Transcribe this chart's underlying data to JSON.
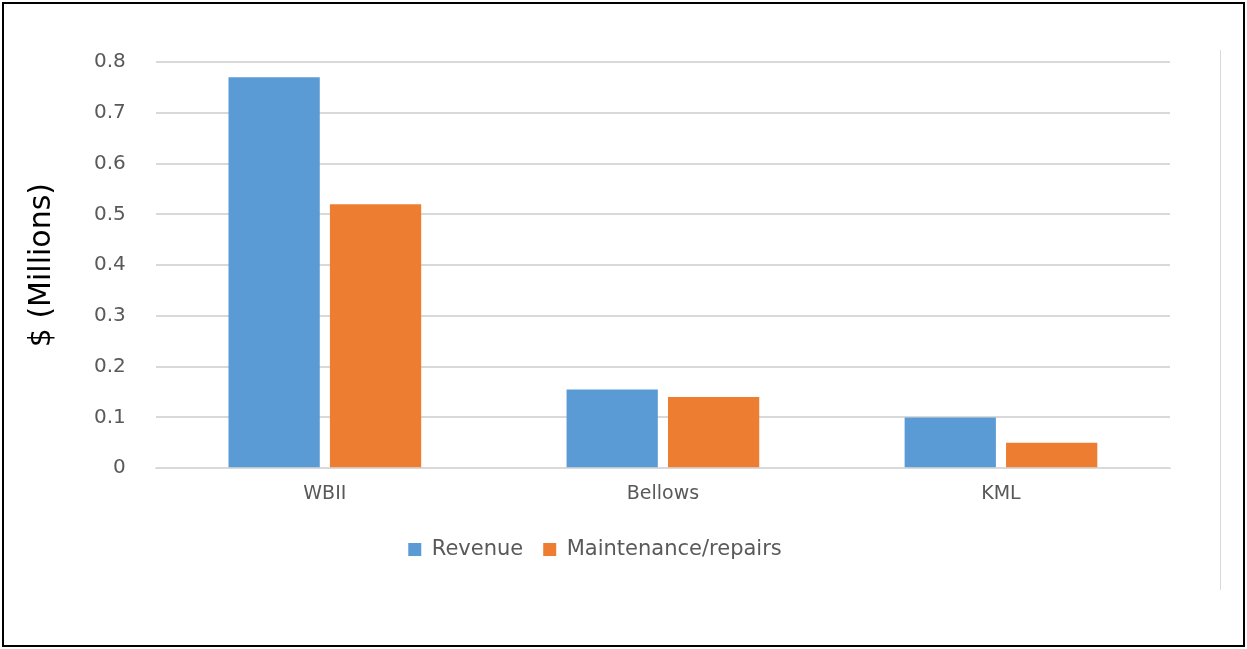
{
  "chart_data": {
    "type": "bar",
    "ylabel": "$ (Millions)",
    "categories": [
      "WBII",
      "Bellows",
      "KML"
    ],
    "series": [
      {
        "name": "Revenue",
        "color": "#5b9bd5",
        "values": [
          0.77,
          0.155,
          0.1
        ]
      },
      {
        "name": "Maintenance/repairs",
        "color": "#ed7d31",
        "values": [
          0.52,
          0.14,
          0.05
        ]
      }
    ],
    "ylim": [
      0,
      0.8
    ],
    "yticks": [
      0,
      0.1,
      0.2,
      0.3,
      0.4,
      0.5,
      0.6,
      0.7,
      0.8
    ],
    "grid": "y",
    "legend": "bottom"
  }
}
